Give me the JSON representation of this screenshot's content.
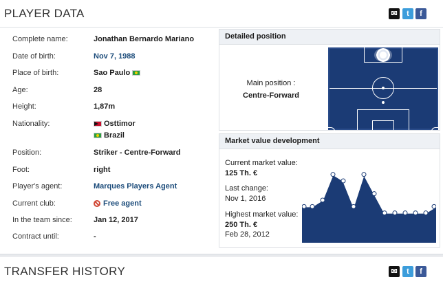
{
  "header": {
    "title": "PLAYER DATA"
  },
  "share": {
    "mail": "✉",
    "twitter": "t",
    "facebook": "f"
  },
  "info": [
    {
      "label": "Complete name:",
      "value": "Jonathan Bernardo Mariano"
    },
    {
      "label": "Date of birth:",
      "value": "Nov 7, 1988"
    },
    {
      "label": "Place of birth:",
      "value": "Sao Paulo"
    },
    {
      "label": "Age:",
      "value": "28"
    },
    {
      "label": "Height:",
      "value": "1,87m"
    },
    {
      "label": "Nationality:",
      "value": "Osttimor",
      "value2": "Brazil"
    },
    {
      "label": "Position:",
      "value": "Striker - Centre-Forward"
    },
    {
      "label": "Foot:",
      "value": "right"
    },
    {
      "label": "Player's agent:",
      "value": "Marques Players Agent"
    },
    {
      "label": "Current club:",
      "value": "Free agent"
    },
    {
      "label": "In the team since:",
      "value": "Jan 12, 2017"
    },
    {
      "label": "Contract until:",
      "value": "-"
    }
  ],
  "position": {
    "title": "Detailed position",
    "main_label": "Main position :",
    "main_value": "Centre-Forward"
  },
  "market": {
    "title": "Market value development",
    "current_label": "Current market value:",
    "current_value": "125 Th. €",
    "change_label": "Last change:",
    "change_date": "Nov 1, 2016",
    "highest_label": "Highest market value:",
    "highest_value": "250 Th. €",
    "highest_date": "Feb 28, 2012",
    "series": [
      125,
      125,
      150,
      250,
      225,
      125,
      250,
      175,
      100,
      100,
      100,
      100,
      100,
      125
    ],
    "series_max": 300
  },
  "transfer": {
    "title": "TRANSFER HISTORY"
  },
  "colors": {
    "accent": "#1b4b7a",
    "pitch": "#1b3b75"
  }
}
